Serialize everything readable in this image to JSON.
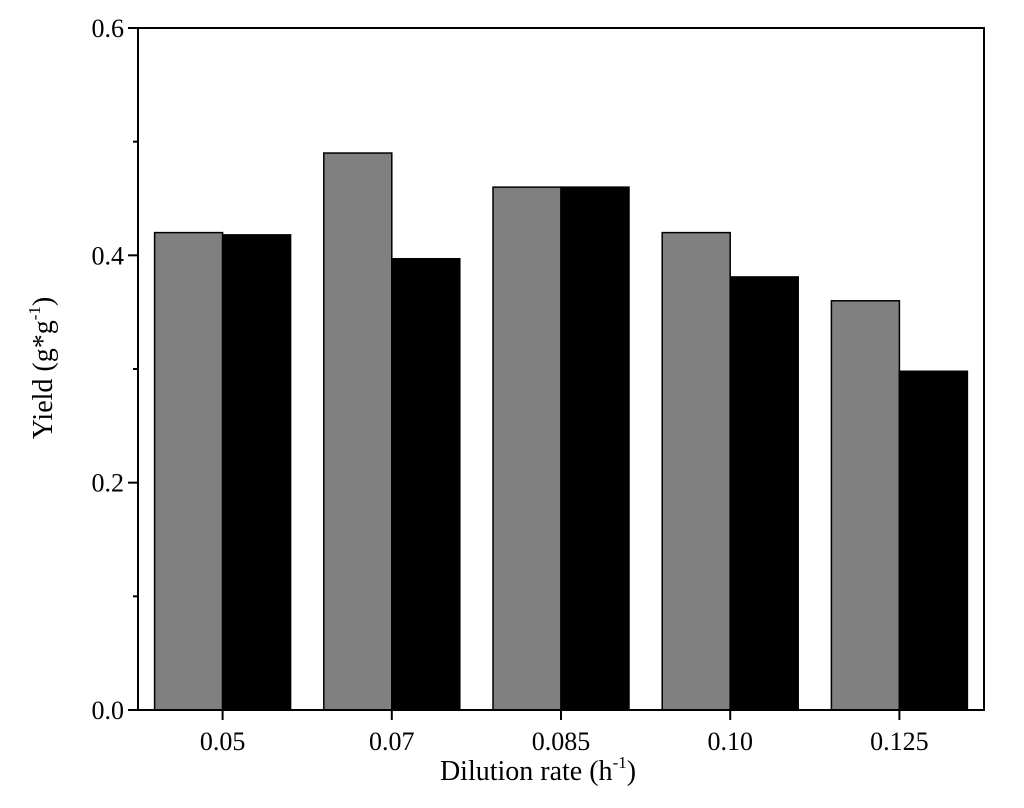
{
  "chart_data": {
    "type": "bar",
    "title": "",
    "xlabel": "Dilution rate (h",
    "xlabel_sup": "-1",
    "xlabel_close": ")",
    "ylabel": "Yield (g*g",
    "ylabel_sup": "-1",
    "ylabel_close": ")",
    "categories": [
      "0.05",
      "0.07",
      "0.085",
      "0.10",
      "0.125"
    ],
    "series": [
      {
        "values": [
          0.42,
          0.49,
          0.46,
          0.42,
          0.36
        ],
        "color": "#808080"
      },
      {
        "values": [
          0.418,
          0.397,
          0.46,
          0.381,
          0.298
        ],
        "color": "#000000"
      }
    ],
    "ylim": [
      0,
      0.6
    ],
    "yticks": [
      "0.0",
      "0.2",
      "0.4",
      "0.6"
    ],
    "ytick_values": [
      0,
      0.2,
      0.4,
      0.6
    ],
    "grid": false,
    "legend": false
  }
}
